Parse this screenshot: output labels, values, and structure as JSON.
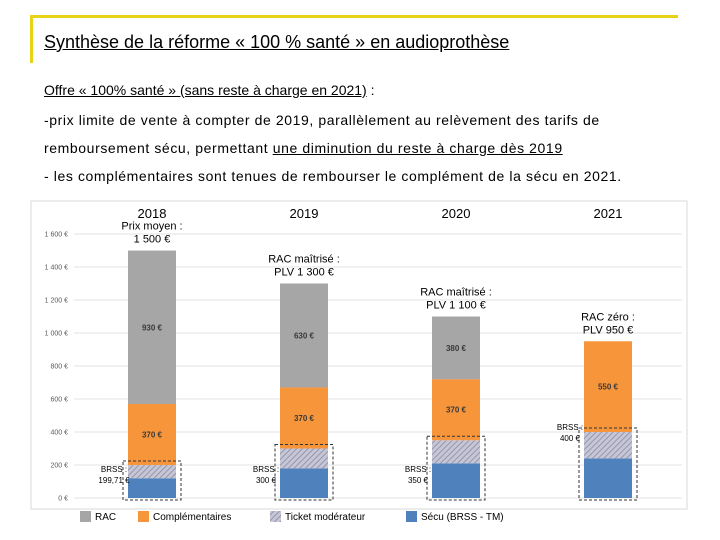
{
  "slide": {
    "title": "Synthèse de la réforme « 100 % santé » en audioprothèse",
    "offer_prefix": "Offre « 100% santé » (sans reste à charge en 2021)",
    "offer_suffix": " :",
    "line1": "-prix limite de vente à compter de 2019, parallèlement au relèvement des tarifs de",
    "line2_prefix": "remboursement sécu, permettant ",
    "line2_underlined": "une diminution du reste à charge dès 2019",
    "line3": "- les complémentaires sont tenues de rembourser le complément de la sécu en 2021."
  },
  "colors": {
    "rac": "#a6a6a6",
    "complementaires": "#f7953b",
    "ticket": "#b2b2c6",
    "secu": "#4f81bd"
  },
  "chart_data": {
    "type": "bar",
    "stacked": true,
    "categories": [
      "2018",
      "2019",
      "2020",
      "2021"
    ],
    "series": [
      {
        "name": "Sécu (BRSS - TM)",
        "key": "secu",
        "values": [
          119.71,
          180,
          210,
          240
        ]
      },
      {
        "name": "Ticket modérateur",
        "key": "ticket",
        "values": [
          80,
          120,
          140,
          160
        ]
      },
      {
        "name": "Complémentaires",
        "key": "complementaires",
        "values": [
          370,
          370,
          370,
          550
        ]
      },
      {
        "name": "RAC",
        "key": "rac",
        "values": [
          930,
          630,
          380,
          0
        ]
      }
    ],
    "value_labels": {
      "complementaires": [
        "370 €",
        "370 €",
        "370 €",
        "550 €"
      ],
      "rac": [
        "930 €",
        "630 €",
        "380 €",
        ""
      ]
    },
    "legend": [
      {
        "name": "RAC",
        "key": "rac"
      },
      {
        "name": "Complémentaires",
        "key": "complementaires"
      },
      {
        "name": "Ticket modérateur",
        "key": "ticket"
      },
      {
        "name": "Sécu (BRSS - TM)",
        "key": "secu"
      }
    ],
    "y_ticks": [
      0,
      200,
      400,
      600,
      800,
      1000,
      1200,
      1400,
      1600
    ],
    "y_tick_labels": [
      "0 €",
      "200 €",
      "400 €",
      "600 €",
      "800 €",
      "1 000 €",
      "1 200 €",
      "1 400 €",
      "1 600 €"
    ],
    "ylim": [
      0,
      1600
    ],
    "annotations": [
      {
        "year": "2018",
        "lines": [
          "Prix moyen :",
          "1 500 €"
        ]
      },
      {
        "year": "2019",
        "lines": [
          "RAC maîtrisé :",
          "PLV 1 300 €"
        ]
      },
      {
        "year": "2020",
        "lines": [
          "RAC maîtrisé :",
          "PLV 1 100 €"
        ]
      },
      {
        "year": "2021",
        "lines": [
          "RAC zéro :",
          "PLV 950 €"
        ]
      }
    ],
    "brss_labels": [
      {
        "year": "2018",
        "lines": [
          "BRSS :",
          "199,71 €"
        ]
      },
      {
        "year": "2019",
        "lines": [
          "BRSS :",
          "300 €"
        ]
      },
      {
        "year": "2020",
        "lines": [
          "BRSS :",
          "350 €"
        ]
      },
      {
        "year": "2021",
        "lines": [
          "BRSS :",
          "400 €"
        ]
      }
    ]
  }
}
